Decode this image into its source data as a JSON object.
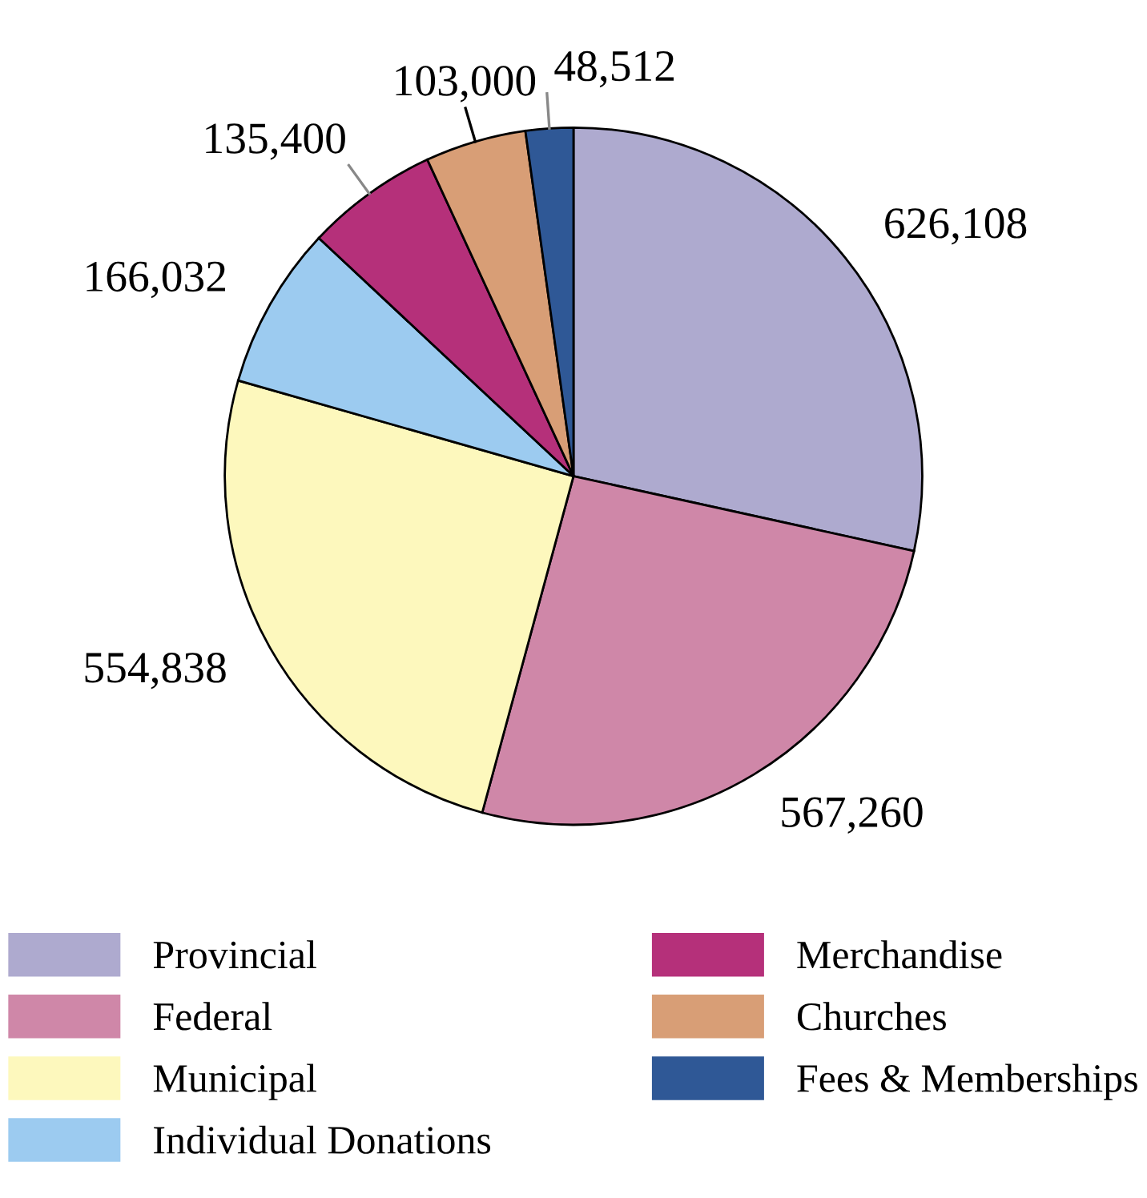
{
  "chart_data": {
    "type": "pie",
    "categories": [
      "Provincial",
      "Federal",
      "Municipal",
      "Individual Donations",
      "Merchandise",
      "Churches",
      "Fees & Memberships"
    ],
    "values": [
      626108,
      567260,
      554838,
      166032,
      135400,
      103000,
      48512
    ],
    "colors": [
      "#aeaacf",
      "#cf87a8",
      "#fdf8bd",
      "#9ccbf0",
      "#b5307a",
      "#d89e76",
      "#2f5896"
    ],
    "value_labels": [
      "626,108",
      "567,260",
      "554,838",
      "166,032",
      "135,400",
      "103,000",
      "48,512"
    ],
    "legend": "bottom"
  }
}
